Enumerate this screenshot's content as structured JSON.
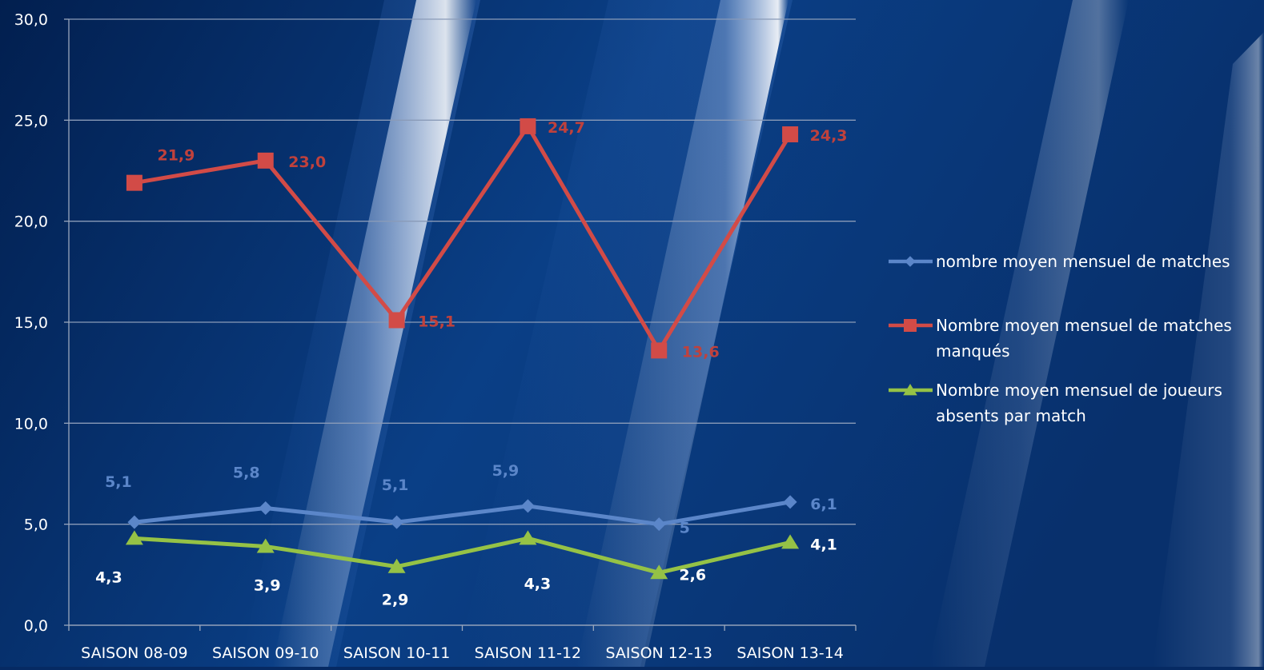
{
  "colors": {
    "background": "#0a3a7e",
    "gridline": "#8a9bb8",
    "axis": "#9aa7bd",
    "text": "#ffffff",
    "series_blue": "#5b86c9",
    "series_red": "#d24b47",
    "series_green": "#95c246",
    "label_white": "#ffffff"
  },
  "chart_data": {
    "type": "line",
    "categories": [
      "SAISON 08-09",
      "SAISON 09-10",
      "SAISON 10-11",
      "SAISON 11-12",
      "SAISON 12-13",
      "SAISON 13-14"
    ],
    "ylim": [
      0,
      30
    ],
    "yticks": [
      "0,0",
      "5,0",
      "10,0",
      "15,0",
      "20,0",
      "25,0",
      "30,0"
    ],
    "ytick_values": [
      0,
      5,
      10,
      15,
      20,
      25,
      30
    ],
    "grid": true,
    "legend_position": "right",
    "series": [
      {
        "name": "nombre moyen mensuel de matches",
        "marker": "diamond",
        "color": "#5b86c9",
        "values": [
          5.1,
          5.8,
          5.1,
          5.9,
          5.0,
          6.1
        ],
        "labels": [
          "5,1",
          "5,8",
          "5,1",
          "5,9",
          "5",
          "6,1"
        ],
        "label_color": "#5b86c9"
      },
      {
        "name": "Nombre moyen mensuel de matches manqués",
        "marker": "square",
        "color": "#d24b47",
        "values": [
          21.9,
          23.0,
          15.1,
          24.7,
          13.6,
          24.3
        ],
        "labels": [
          "21,9",
          "23,0",
          "15,1",
          "24,7",
          "13,6",
          "24,3"
        ],
        "label_color": "#c0413c"
      },
      {
        "name": "Nombre moyen mensuel de joueurs absents par match",
        "marker": "triangle",
        "color": "#95c246",
        "values": [
          4.3,
          3.9,
          2.9,
          4.3,
          2.6,
          4.1
        ],
        "labels": [
          "4,3",
          "3,9",
          "2,9",
          "4,3",
          "2,6",
          "4,1"
        ],
        "label_color": "#ffffff"
      }
    ],
    "legend": [
      {
        "lines": [
          "nombre moyen mensuel de matches"
        ]
      },
      {
        "lines": [
          "Nombre moyen mensuel de matches",
          "manqués"
        ]
      },
      {
        "lines": [
          "Nombre moyen mensuel de joueurs",
          "absents par match"
        ]
      }
    ]
  }
}
